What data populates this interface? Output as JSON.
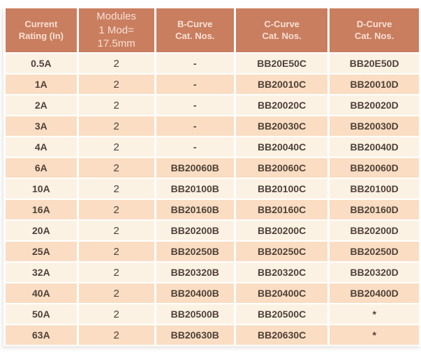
{
  "colors": {
    "header_bg": "#c97e60",
    "header_text": "#f8e0d3",
    "row_light_bg": "#fcf2e3",
    "row_peach_bg": "#faddc2",
    "body_text": "#4f4138",
    "page_bg": "#ffffff"
  },
  "table": {
    "columns": [
      {
        "id": "current_rating",
        "label": "Current\nRating (In)"
      },
      {
        "id": "modules",
        "label": "Modules\n1 Mod=\n17.5mm"
      },
      {
        "id": "b_curve",
        "label": "B-Curve\nCat. Nos."
      },
      {
        "id": "c_curve",
        "label": "C-Curve\nCat. Nos."
      },
      {
        "id": "d_curve",
        "label": "D-Curve\nCat. Nos."
      }
    ],
    "rows": [
      {
        "current_rating": "0.5A",
        "modules": "2",
        "b_curve": "-",
        "c_curve": "BB20E50C",
        "d_curve": "BB20E50D"
      },
      {
        "current_rating": "1A",
        "modules": "2",
        "b_curve": "-",
        "c_curve": "BB20010C",
        "d_curve": "BB20010D"
      },
      {
        "current_rating": "2A",
        "modules": "2",
        "b_curve": "-",
        "c_curve": "BB20020C",
        "d_curve": "BB20020D"
      },
      {
        "current_rating": "3A",
        "modules": "2",
        "b_curve": "-",
        "c_curve": "BB20030C",
        "d_curve": "BB20030D"
      },
      {
        "current_rating": "4A",
        "modules": "2",
        "b_curve": "-",
        "c_curve": "BB20040C",
        "d_curve": "BB20040D"
      },
      {
        "current_rating": "6A",
        "modules": "2",
        "b_curve": "BB20060B",
        "c_curve": "BB20060C",
        "d_curve": "BB20060D"
      },
      {
        "current_rating": "10A",
        "modules": "2",
        "b_curve": "BB20100B",
        "c_curve": "BB20100C",
        "d_curve": "BB20100D"
      },
      {
        "current_rating": "16A",
        "modules": "2",
        "b_curve": "BB20160B",
        "c_curve": "BB20160C",
        "d_curve": "BB20160D"
      },
      {
        "current_rating": "20A",
        "modules": "2",
        "b_curve": "BB20200B",
        "c_curve": "BB20200C",
        "d_curve": "BB20200D"
      },
      {
        "current_rating": "25A",
        "modules": "2",
        "b_curve": "BB20250B",
        "c_curve": "BB20250C",
        "d_curve": "BB20250D"
      },
      {
        "current_rating": "32A",
        "modules": "2",
        "b_curve": "BB20320B",
        "c_curve": "BB20320C",
        "d_curve": "BB20320D"
      },
      {
        "current_rating": "40A",
        "modules": "2",
        "b_curve": "BB20400B",
        "c_curve": "BB20400C",
        "d_curve": "BB20400D"
      },
      {
        "current_rating": "50A",
        "modules": "2",
        "b_curve": "BB20500B",
        "c_curve": "BB20500C",
        "d_curve": "*"
      },
      {
        "current_rating": "63A",
        "modules": "2",
        "b_curve": "BB20630B",
        "c_curve": "BB20630C",
        "d_curve": "*"
      }
    ]
  }
}
